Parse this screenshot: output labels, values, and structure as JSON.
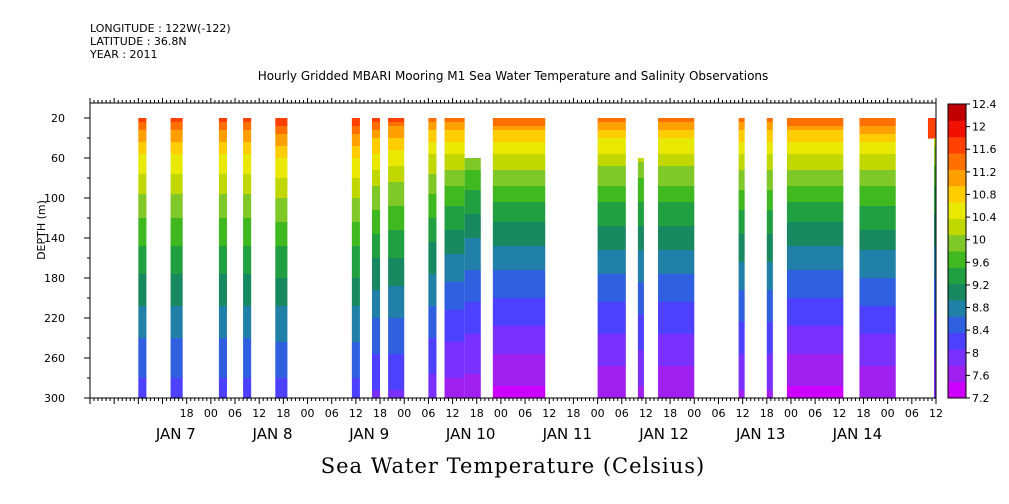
{
  "header": {
    "longitude": "LONGITUDE : 122W(-122)",
    "latitude": "LATITUDE : 36.8N",
    "year": "YEAR : 2011"
  },
  "chart_data": {
    "type": "heatmap",
    "title": "Hourly Gridded MBARI Mooring M1 Sea Water Temperature and Salinity Observations",
    "xlabel": "Sea Water Temperature (Celsius)",
    "ylabel": "DEPTH (m)",
    "x_units": "hours since JAN 7 00:00, 2011",
    "xlim": [
      -30,
      180
    ],
    "ylim": [
      300,
      5
    ],
    "y_ticks": [
      20,
      60,
      100,
      140,
      180,
      220,
      260,
      300
    ],
    "x_hour_ticks": [
      "18",
      "00",
      "06",
      "12",
      "18",
      "00",
      "06",
      "12",
      "18",
      "00",
      "06",
      "12",
      "18",
      "00",
      "06",
      "12",
      "18",
      "00",
      "06",
      "12",
      "18",
      "00",
      "06",
      "12",
      "18",
      "00",
      "06",
      "12",
      "18",
      "00",
      "06",
      "12"
    ],
    "x_day_labels": [
      "JAN  7",
      "JAN  8",
      "JAN  9",
      "JAN 10",
      "JAN 11",
      "JAN 12",
      "JAN 13",
      "JAN 14"
    ],
    "colorbar": {
      "levels": [
        7.2,
        7.6,
        8,
        8.4,
        8.8,
        9.2,
        9.6,
        10,
        10.4,
        10.8,
        11.2,
        11.6,
        12,
        12.4
      ],
      "colors": [
        "#cc00ff",
        "#a020f0",
        "#7a30ff",
        "#4d40ff",
        "#3060e0",
        "#2080a8",
        "#188860",
        "#20a040",
        "#40b820",
        "#80c828",
        "#c0d800",
        "#e8e800",
        "#ffcc00",
        "#ffa000",
        "#ff7000",
        "#ff4000",
        "#f01000",
        "#c00000"
      ]
    },
    "data_blocks": [
      {
        "x": [
          -18,
          -16
        ],
        "depth_top": 20,
        "depth_bottom": 300,
        "surface_temp": 11.9,
        "bottom_temp": 8.2
      },
      {
        "x": [
          -10,
          -7
        ],
        "depth_top": 20,
        "depth_bottom": 300,
        "surface_temp": 11.9,
        "bottom_temp": 8.2
      },
      {
        "x": [
          2,
          4
        ],
        "depth_top": 20,
        "depth_bottom": 300,
        "surface_temp": 11.9,
        "bottom_temp": 8.2
      },
      {
        "x": [
          8,
          10
        ],
        "depth_top": 20,
        "depth_bottom": 300,
        "surface_temp": 11.9,
        "bottom_temp": 8.2
      },
      {
        "x": [
          16,
          19
        ],
        "depth_top": 20,
        "depth_bottom": 300,
        "surface_temp": 12.0,
        "bottom_temp": 8.2
      },
      {
        "x": [
          35,
          37
        ],
        "depth_top": 20,
        "depth_bottom": 300,
        "surface_temp": 12.0,
        "bottom_temp": 8.2
      },
      {
        "x": [
          40,
          42
        ],
        "depth_top": 20,
        "depth_bottom": 300,
        "surface_temp": 11.9,
        "bottom_temp": 8.0
      },
      {
        "x": [
          44,
          48
        ],
        "depth_top": 20,
        "depth_bottom": 300,
        "surface_temp": 11.8,
        "bottom_temp": 8.0
      },
      {
        "x": [
          54,
          56
        ],
        "depth_top": 20,
        "depth_bottom": 300,
        "surface_temp": 11.6,
        "bottom_temp": 7.9
      },
      {
        "x": [
          58,
          63
        ],
        "depth_top": 20,
        "depth_bottom": 300,
        "surface_temp": 11.7,
        "bottom_temp": 7.6
      },
      {
        "x": [
          63,
          67
        ],
        "depth_top": 60,
        "depth_bottom": 300,
        "surface_temp": 11.2,
        "bottom_temp": 7.6
      },
      {
        "x": [
          70,
          83
        ],
        "depth_top": 20,
        "depth_bottom": 300,
        "surface_temp": 11.8,
        "bottom_temp": 7.4
      },
      {
        "x": [
          96,
          103
        ],
        "depth_top": 20,
        "depth_bottom": 300,
        "surface_temp": 11.7,
        "bottom_temp": 7.5
      },
      {
        "x": [
          106,
          107.5
        ],
        "depth_top": 60,
        "depth_bottom": 300,
        "surface_temp": 11.4,
        "bottom_temp": 7.7
      },
      {
        "x": [
          111,
          120
        ],
        "depth_top": 20,
        "depth_bottom": 300,
        "surface_temp": 11.7,
        "bottom_temp": 7.5
      },
      {
        "x": [
          131,
          132.5
        ],
        "depth_top": 20,
        "depth_bottom": 300,
        "surface_temp": 11.7,
        "bottom_temp": 7.7
      },
      {
        "x": [
          138,
          139.5
        ],
        "depth_top": 20,
        "depth_bottom": 300,
        "surface_temp": 11.7,
        "bottom_temp": 7.7
      },
      {
        "x": [
          143,
          157
        ],
        "depth_top": 20,
        "depth_bottom": 300,
        "surface_temp": 11.8,
        "bottom_temp": 7.4
      },
      {
        "x": [
          161,
          170
        ],
        "depth_top": 20,
        "depth_bottom": 300,
        "surface_temp": 11.8,
        "bottom_temp": 7.5
      },
      {
        "x": [
          178,
          180
        ],
        "depth_top": 20,
        "depth_bottom": 40,
        "surface_temp": 11.8,
        "bottom_temp": 11.4
      },
      {
        "x": [
          179.5,
          180
        ],
        "depth_top": 40,
        "depth_bottom": 300,
        "surface_temp": 11.0,
        "bottom_temp": 7.8
      }
    ]
  }
}
